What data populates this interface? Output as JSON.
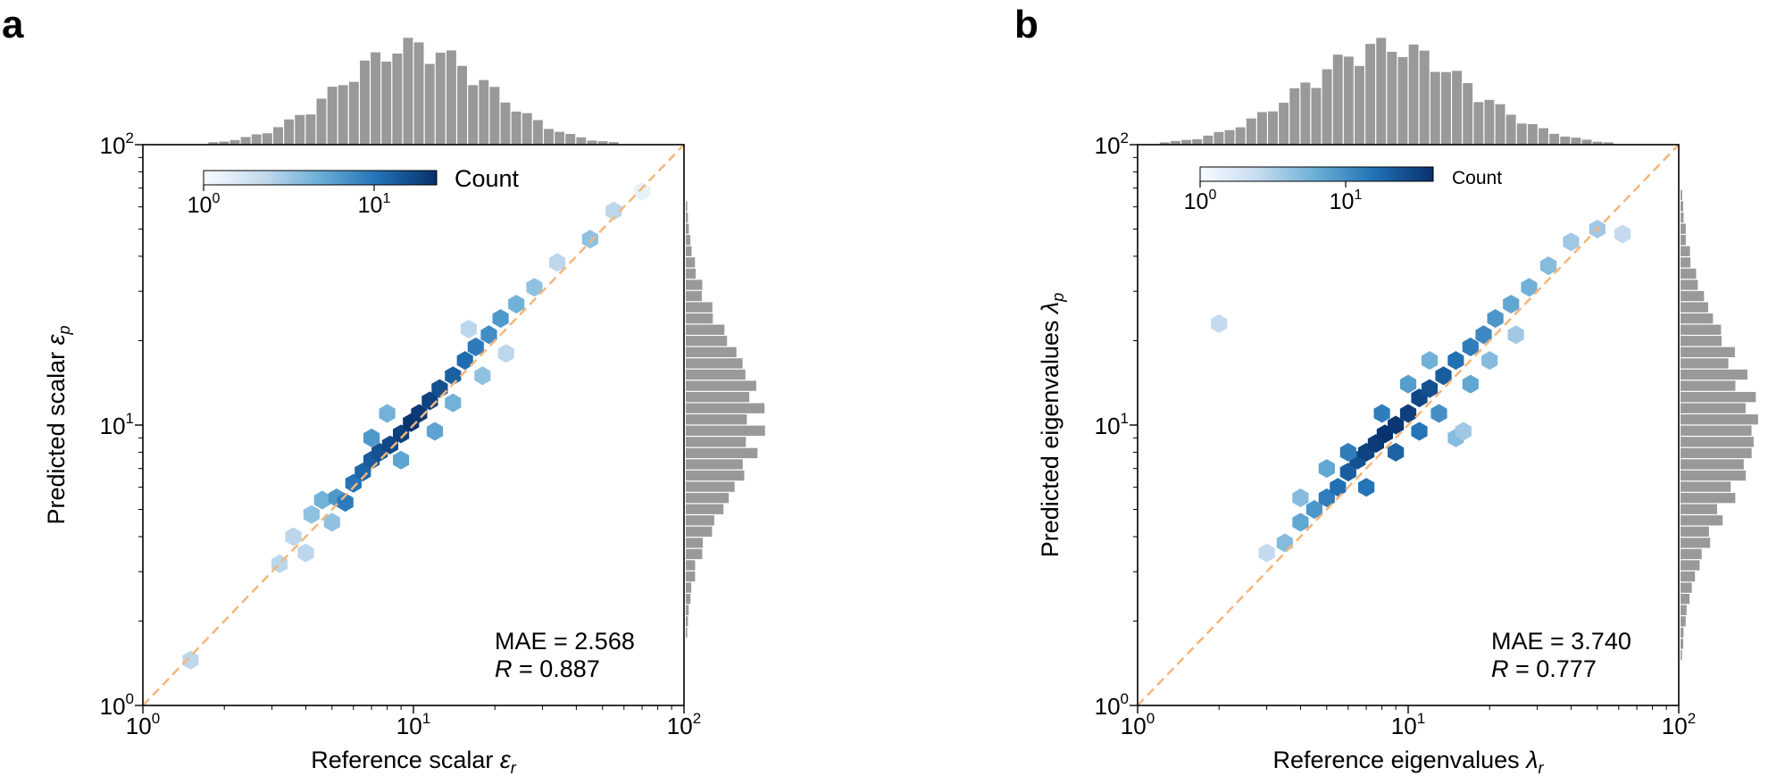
{
  "chart_data": [
    {
      "panel": "a",
      "type": "heatmap",
      "subtype": "hexbin-with-marginal-histograms",
      "xlabel": "Reference scalar ",
      "xlabel_symbol": "ε",
      "xlabel_sub": "r",
      "ylabel": "Predicted scalar ",
      "ylabel_symbol": "ε",
      "ylabel_sub": "p",
      "xscale": "log",
      "yscale": "log",
      "xlim": [
        1,
        100
      ],
      "ylim": [
        1,
        100
      ],
      "xticks": [
        {
          "base": "10",
          "exp": "0"
        },
        {
          "base": "10",
          "exp": "1"
        },
        {
          "base": "10",
          "exp": "2"
        }
      ],
      "yticks": [
        {
          "base": "10",
          "exp": "0"
        },
        {
          "base": "10",
          "exp": "1"
        },
        {
          "base": "10",
          "exp": "2"
        }
      ],
      "reference_line": "y = x (dashed, orange)",
      "annotation": {
        "mae": "MAE = 2.568",
        "r_symbol": "R",
        "r_value": " = 0.887"
      },
      "colorbar": {
        "label": "Count",
        "scale": "log",
        "range": [
          1,
          25
        ],
        "ticks": [
          {
            "base": "10",
            "exp": "0"
          },
          {
            "base": "10",
            "exp": "1"
          }
        ],
        "placement": "top-left inset"
      },
      "hexbins": {
        "description": "counts concentrated along the diagonal, peak ~25 near x≈y≈10",
        "cells": [
          {
            "x": 1.5,
            "y": 1.45,
            "count": 2
          },
          {
            "x": 3.2,
            "y": 3.2,
            "count": 2
          },
          {
            "x": 3.6,
            "y": 4.0,
            "count": 2
          },
          {
            "x": 4.2,
            "y": 4.8,
            "count": 3
          },
          {
            "x": 4.6,
            "y": 5.4,
            "count": 4
          },
          {
            "x": 5.2,
            "y": 5.5,
            "count": 6
          },
          {
            "x": 5.6,
            "y": 5.3,
            "count": 9
          },
          {
            "x": 6.0,
            "y": 6.2,
            "count": 10
          },
          {
            "x": 6.5,
            "y": 6.8,
            "count": 12
          },
          {
            "x": 7.0,
            "y": 7.5,
            "count": 14
          },
          {
            "x": 7.5,
            "y": 8.0,
            "count": 16
          },
          {
            "x": 8.2,
            "y": 8.5,
            "count": 18
          },
          {
            "x": 9.0,
            "y": 9.3,
            "count": 20
          },
          {
            "x": 9.8,
            "y": 10.2,
            "count": 24
          },
          {
            "x": 10.5,
            "y": 11.0,
            "count": 22
          },
          {
            "x": 11.5,
            "y": 12.2,
            "count": 20
          },
          {
            "x": 12.5,
            "y": 13.5,
            "count": 16
          },
          {
            "x": 14.0,
            "y": 15.0,
            "count": 13
          },
          {
            "x": 15.5,
            "y": 17.0,
            "count": 11
          },
          {
            "x": 17.0,
            "y": 19.0,
            "count": 9
          },
          {
            "x": 19.0,
            "y": 21.0,
            "count": 7
          },
          {
            "x": 21.0,
            "y": 24.0,
            "count": 6
          },
          {
            "x": 24.0,
            "y": 27.0,
            "count": 4
          },
          {
            "x": 28.0,
            "y": 31.0,
            "count": 3
          },
          {
            "x": 34.0,
            "y": 38.0,
            "count": 2
          },
          {
            "x": 45.0,
            "y": 46.0,
            "count": 3
          },
          {
            "x": 55.0,
            "y": 58.0,
            "count": 2
          },
          {
            "x": 70.0,
            "y": 68.0,
            "count": 1
          },
          {
            "x": 7.0,
            "y": 9.0,
            "count": 6
          },
          {
            "x": 9.0,
            "y": 7.5,
            "count": 5
          },
          {
            "x": 12.0,
            "y": 9.5,
            "count": 5
          },
          {
            "x": 8.0,
            "y": 11.0,
            "count": 4
          },
          {
            "x": 14.0,
            "y": 12.0,
            "count": 4
          },
          {
            "x": 18.0,
            "y": 15.0,
            "count": 3
          },
          {
            "x": 5.0,
            "y": 4.5,
            "count": 3
          },
          {
            "x": 4.0,
            "y": 3.5,
            "count": 2
          },
          {
            "x": 22.0,
            "y": 18.0,
            "count": 2
          },
          {
            "x": 16.0,
            "y": 22.0,
            "count": 2
          }
        ]
      },
      "x_marginal_hist": {
        "description": "distribution of reference values, peak near 10"
      },
      "y_marginal_hist": {
        "description": "distribution of predicted values, peak near 10"
      }
    },
    {
      "panel": "b",
      "type": "heatmap",
      "subtype": "hexbin-with-marginal-histograms",
      "xlabel": "Reference eigenvalues ",
      "xlabel_symbol": "λ",
      "xlabel_sub": "r",
      "ylabel": "Predicted eigenvalues ",
      "ylabel_symbol": "λ",
      "ylabel_sub": "p",
      "xscale": "log",
      "yscale": "log",
      "xlim": [
        1,
        100
      ],
      "ylim": [
        1,
        100
      ],
      "xticks": [
        {
          "base": "10",
          "exp": "0"
        },
        {
          "base": "10",
          "exp": "1"
        },
        {
          "base": "10",
          "exp": "2"
        }
      ],
      "yticks": [
        {
          "base": "10",
          "exp": "0"
        },
        {
          "base": "10",
          "exp": "1"
        },
        {
          "base": "10",
          "exp": "2"
        }
      ],
      "reference_line": "y = x (dashed, orange)",
      "annotation": {
        "mae": "MAE = 3.740",
        "r_symbol": "R",
        "r_value": " = 0.777"
      },
      "colorbar": {
        "label": "Count",
        "scale": "log",
        "range": [
          1,
          40
        ],
        "ticks": [
          {
            "base": "10",
            "exp": "0"
          },
          {
            "base": "10",
            "exp": "1"
          }
        ],
        "placement": "top-left inset"
      },
      "hexbins": {
        "description": "broader cloud along the diagonal, peak ~40 near x≈y≈8",
        "cells": [
          {
            "x": 2.0,
            "y": 23.0,
            "count": 2
          },
          {
            "x": 3.0,
            "y": 3.5,
            "count": 2
          },
          {
            "x": 3.5,
            "y": 3.8,
            "count": 4
          },
          {
            "x": 4.0,
            "y": 4.5,
            "count": 6
          },
          {
            "x": 4.5,
            "y": 5.0,
            "count": 8
          },
          {
            "x": 5.0,
            "y": 5.5,
            "count": 12
          },
          {
            "x": 5.5,
            "y": 6.0,
            "count": 15
          },
          {
            "x": 6.0,
            "y": 6.8,
            "count": 20
          },
          {
            "x": 6.5,
            "y": 7.5,
            "count": 24
          },
          {
            "x": 7.0,
            "y": 8.0,
            "count": 30
          },
          {
            "x": 7.6,
            "y": 8.6,
            "count": 34
          },
          {
            "x": 8.2,
            "y": 9.3,
            "count": 38
          },
          {
            "x": 9.0,
            "y": 10.0,
            "count": 36
          },
          {
            "x": 10.0,
            "y": 11.0,
            "count": 32
          },
          {
            "x": 11.0,
            "y": 12.5,
            "count": 28
          },
          {
            "x": 12.0,
            "y": 13.5,
            "count": 24
          },
          {
            "x": 13.5,
            "y": 15.0,
            "count": 20
          },
          {
            "x": 15.0,
            "y": 17.0,
            "count": 15
          },
          {
            "x": 17.0,
            "y": 19.0,
            "count": 12
          },
          {
            "x": 19.0,
            "y": 21.0,
            "count": 10
          },
          {
            "x": 21.0,
            "y": 24.0,
            "count": 8
          },
          {
            "x": 24.0,
            "y": 27.0,
            "count": 6
          },
          {
            "x": 28.0,
            "y": 31.0,
            "count": 5
          },
          {
            "x": 33.0,
            "y": 37.0,
            "count": 4
          },
          {
            "x": 40.0,
            "y": 45.0,
            "count": 3
          },
          {
            "x": 50.0,
            "y": 50.0,
            "count": 3
          },
          {
            "x": 62.0,
            "y": 48.0,
            "count": 2
          },
          {
            "x": 7.0,
            "y": 6.0,
            "count": 14
          },
          {
            "x": 9.0,
            "y": 8.0,
            "count": 18
          },
          {
            "x": 11.0,
            "y": 9.5,
            "count": 14
          },
          {
            "x": 6.0,
            "y": 8.0,
            "count": 12
          },
          {
            "x": 8.0,
            "y": 11.0,
            "count": 12
          },
          {
            "x": 13.0,
            "y": 11.0,
            "count": 9
          },
          {
            "x": 15.0,
            "y": 9.0,
            "count": 4
          },
          {
            "x": 5.0,
            "y": 7.0,
            "count": 6
          },
          {
            "x": 4.0,
            "y": 5.5,
            "count": 4
          },
          {
            "x": 17.0,
            "y": 14.0,
            "count": 6
          },
          {
            "x": 20.0,
            "y": 17.0,
            "count": 4
          },
          {
            "x": 10.0,
            "y": 14.0,
            "count": 7
          },
          {
            "x": 12.0,
            "y": 17.0,
            "count": 5
          },
          {
            "x": 25.0,
            "y": 21.0,
            "count": 3
          },
          {
            "x": 16.0,
            "y": 9.5,
            "count": 3
          }
        ]
      },
      "x_marginal_hist": {
        "description": "distribution of reference values, peak near 8"
      },
      "y_marginal_hist": {
        "description": "distribution of predicted values, peak near 10"
      }
    }
  ],
  "colors": {
    "hist_bar": "#999999",
    "ref_line": "#f5b57a",
    "cmap_low": "#f7fbff",
    "cmap_mid": "#6aaed6",
    "cmap_high": "#08306b"
  },
  "panel_letters": [
    "a",
    "b"
  ]
}
